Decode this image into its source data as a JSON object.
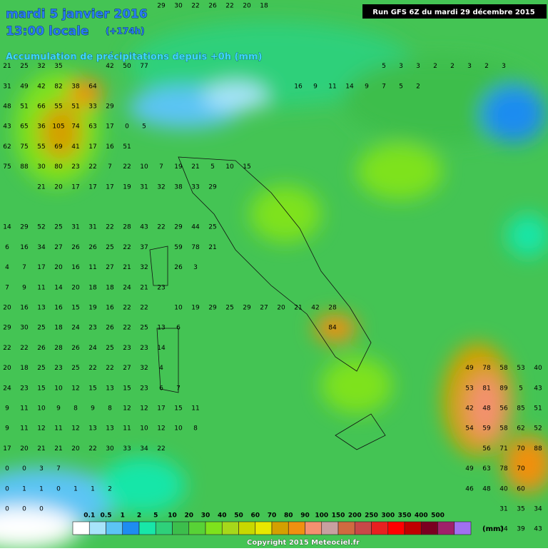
{
  "header": {
    "date": "mardi 5 janvier 2016",
    "time": "13:00 locale",
    "lead": "(+174h)",
    "subtitle": "Accumulation de précipitations depuis +0h (mm)",
    "run": "Run GFS 6Z du mardi 29 décembre 2015"
  },
  "legend": {
    "labels": [
      0.1,
      0.5,
      1,
      2,
      5,
      10,
      20,
      30,
      40,
      50,
      60,
      70,
      80,
      90,
      100,
      150,
      200,
      250,
      300,
      350,
      400,
      500
    ],
    "colors": [
      "#ffffff",
      "#a8e4fa",
      "#5cc4f4",
      "#1e8cf0",
      "#18e6a8",
      "#2ed07a",
      "#3cbe4c",
      "#58d236",
      "#7ee21c",
      "#a6d81a",
      "#c8d800",
      "#e8e800",
      "#d4a000",
      "#f09010",
      "#f49070",
      "#c8a0a0",
      "#d06a40",
      "#c84848",
      "#e82020",
      "#ff0000",
      "#c00000",
      "#7a0020",
      "#a0206a",
      "#a070f0"
    ],
    "unit": "(mm)"
  },
  "grid": {
    "rows": [
      [
        null,
        null,
        null,
        null,
        null,
        null,
        null,
        null,
        null,
        29,
        30,
        22,
        26,
        22,
        20,
        18
      ],
      [],
      [],
      [
        21,
        25,
        32,
        35,
        null,
        null,
        42,
        50,
        77,
        null,
        null,
        null,
        null,
        null,
        null,
        null,
        null,
        null,
        null,
        null,
        null,
        null,
        5,
        3,
        3,
        2,
        2,
        3,
        2,
        3
      ],
      [
        31,
        49,
        42,
        82,
        38,
        64,
        null,
        null,
        null,
        null,
        null,
        null,
        null,
        null,
        null,
        null,
        null,
        16,
        9,
        11,
        14,
        9,
        7,
        5,
        2
      ],
      [
        48,
        51,
        66,
        55,
        51,
        33,
        29
      ],
      [
        43,
        65,
        36,
        105,
        74,
        63,
        17,
        0,
        5
      ],
      [
        62,
        75,
        55,
        69,
        41,
        17,
        16,
        51
      ],
      [
        75,
        88,
        30,
        80,
        23,
        22,
        7,
        22,
        10,
        7,
        19,
        21,
        5,
        10,
        15
      ],
      [
        null,
        null,
        21,
        20,
        17,
        17,
        17,
        19,
        31,
        32,
        38,
        33,
        29
      ],
      [],
      [
        14,
        29,
        52,
        25,
        31,
        31,
        22,
        28,
        43,
        22,
        29,
        44,
        25
      ],
      [
        6,
        16,
        34,
        27,
        26,
        26,
        25,
        22,
        37,
        null,
        59,
        78,
        21
      ],
      [
        4,
        7,
        17,
        20,
        16,
        11,
        27,
        21,
        32,
        null,
        26,
        3
      ],
      [
        7,
        9,
        11,
        14,
        20,
        18,
        18,
        24,
        21,
        23
      ],
      [
        20,
        16,
        13,
        16,
        15,
        19,
        16,
        22,
        22,
        null,
        10,
        19,
        29,
        25,
        29,
        27,
        20,
        21,
        42,
        28
      ],
      [
        29,
        30,
        25,
        18,
        24,
        23,
        26,
        22,
        25,
        13,
        6,
        null,
        null,
        null,
        null,
        null,
        null,
        null,
        null,
        84
      ],
      [
        22,
        22,
        26,
        28,
        26,
        24,
        25,
        23,
        23,
        14
      ],
      [
        20,
        18,
        25,
        23,
        25,
        22,
        22,
        27,
        32,
        4,
        null,
        null,
        null,
        null,
        null,
        null,
        null,
        null,
        null,
        null,
        null,
        null,
        null,
        null,
        null,
        null,
        null,
        49,
        78,
        58,
        53,
        40
      ],
      [
        24,
        23,
        15,
        10,
        12,
        15,
        13,
        15,
        23,
        6,
        7,
        null,
        null,
        null,
        null,
        null,
        null,
        null,
        null,
        null,
        null,
        null,
        null,
        null,
        null,
        null,
        null,
        53,
        81,
        89,
        5,
        43
      ],
      [
        9,
        11,
        10,
        9,
        8,
        9,
        8,
        12,
        12,
        17,
        15,
        11,
        null,
        null,
        null,
        null,
        null,
        null,
        null,
        null,
        null,
        null,
        null,
        null,
        null,
        null,
        null,
        42,
        48,
        56,
        85,
        51
      ],
      [
        9,
        11,
        12,
        11,
        12,
        13,
        13,
        11,
        10,
        12,
        10,
        8,
        null,
        null,
        null,
        null,
        null,
        null,
        null,
        null,
        null,
        null,
        null,
        null,
        null,
        null,
        null,
        54,
        59,
        58,
        62,
        52
      ],
      [
        17,
        20,
        21,
        21,
        20,
        22,
        30,
        33,
        34,
        22,
        null,
        null,
        null,
        null,
        null,
        null,
        null,
        null,
        null,
        null,
        null,
        null,
        null,
        null,
        null,
        null,
        null,
        null,
        56,
        71,
        70,
        88
      ],
      [
        0,
        0,
        3,
        7,
        null,
        null,
        null,
        null,
        null,
        null,
        null,
        null,
        null,
        null,
        null,
        null,
        null,
        null,
        null,
        null,
        null,
        null,
        null,
        null,
        null,
        null,
        null,
        49,
        63,
        78,
        70
      ],
      [
        0,
        1,
        1,
        0,
        1,
        1,
        2,
        null,
        null,
        null,
        null,
        null,
        null,
        null,
        null,
        null,
        null,
        null,
        null,
        null,
        null,
        null,
        null,
        null,
        null,
        null,
        null,
        46,
        48,
        40,
        60
      ],
      [
        0,
        0,
        0,
        null,
        null,
        null,
        null,
        null,
        null,
        null,
        null,
        null,
        null,
        null,
        null,
        null,
        null,
        null,
        null,
        null,
        null,
        null,
        null,
        null,
        null,
        null,
        null,
        null,
        null,
        31,
        35,
        34
      ],
      [
        null,
        null,
        null,
        null,
        null,
        null,
        null,
        null,
        null,
        null,
        null,
        null,
        null,
        null,
        null,
        null,
        null,
        null,
        null,
        null,
        null,
        null,
        null,
        null,
        null,
        null,
        null,
        null,
        null,
        34,
        39,
        43
      ]
    ]
  },
  "copyright": "Copyright 2015 Meteociel.fr"
}
